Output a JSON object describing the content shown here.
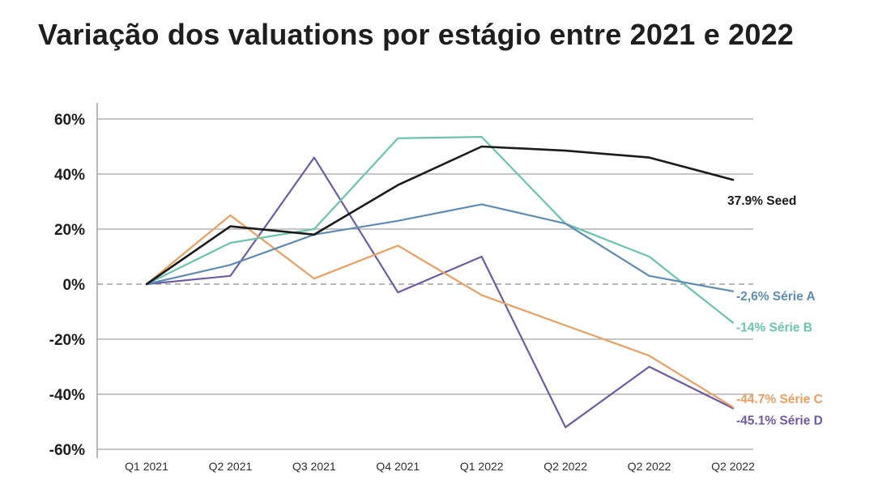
{
  "page": {
    "background": "#ffffff"
  },
  "title": "Variação dos valuations por estágio entre 2021 e 2022",
  "chart_data": {
    "type": "line",
    "title": "Variação dos valuations por estágio entre 2021 e 2022",
    "categories": [
      "Q1 2021",
      "Q2 2021",
      "Q3 2021",
      "Q4 2021",
      "Q1 2022",
      "Q2 2022",
      "Q2 2022",
      "Q2 2022"
    ],
    "ylim": [
      -60,
      60
    ],
    "yticks": [
      {
        "value": 60,
        "label": "60%"
      },
      {
        "value": 40,
        "label": "40%"
      },
      {
        "value": 20,
        "label": "20%"
      },
      {
        "value": 0,
        "label": "0%",
        "dashed": true
      },
      {
        "value": -20,
        "label": "-20%"
      },
      {
        "value": -40,
        "label": "-40%"
      },
      {
        "value": -60,
        "label": "-60%"
      }
    ],
    "grid": true,
    "legend_position": "line-end-labels",
    "series": [
      {
        "name": "Seed",
        "color": "#1b1b1b",
        "line_width": 2.6,
        "values": [
          0,
          21,
          18,
          36,
          50,
          48.5,
          46,
          37.9
        ],
        "end_label": "37.9% Seed",
        "label_dx": -7,
        "label_dy": 31
      },
      {
        "name": "Série A",
        "color": "#5d8cb6",
        "line_width": 2.2,
        "values": [
          0,
          7,
          18,
          23,
          29,
          22,
          3,
          -2.6
        ],
        "end_label": "-2,6% Série A",
        "label_dx": 4,
        "label_dy": 11
      },
      {
        "name": "Série B",
        "color": "#68c5ab",
        "line_width": 2.2,
        "values": [
          0,
          15,
          20,
          53,
          53.5,
          22,
          10,
          -14
        ],
        "end_label": "-14% Série B",
        "label_dx": 4,
        "label_dy": 11
      },
      {
        "name": "Série C",
        "color": "#ef9d5c",
        "line_width": 2.2,
        "values": [
          0,
          25,
          2,
          14,
          -4,
          -15,
          -26,
          -44.7
        ],
        "end_label": "-44.7% Série C",
        "label_dx": 4,
        "label_dy": -5
      },
      {
        "name": "Série D",
        "color": "#6c5ba6",
        "line_width": 2.2,
        "values": [
          0,
          3,
          46,
          -3,
          10,
          -52,
          -30,
          -45.1
        ],
        "end_label": "-45.1% Série D",
        "label_dx": 4,
        "label_dy": 20
      }
    ],
    "colors": {
      "grid": "#a4a4a4",
      "zero_line": "#8e8e8e",
      "axis": "#a4a4a4",
      "tick_text": "#1c1c1c",
      "category_text": "#2d2d2d",
      "title_text": "#1e1e1e"
    }
  }
}
